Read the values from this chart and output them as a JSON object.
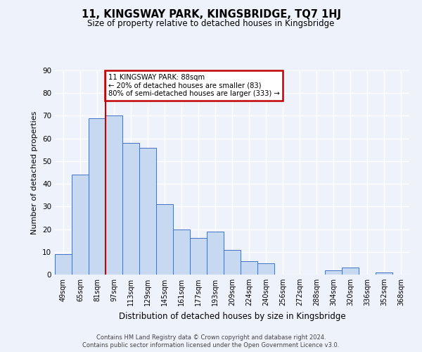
{
  "title": "11, KINGSWAY PARK, KINGSBRIDGE, TQ7 1HJ",
  "subtitle": "Size of property relative to detached houses in Kingsbridge",
  "xlabel": "Distribution of detached houses by size in Kingsbridge",
  "ylabel": "Number of detached properties",
  "bar_labels": [
    "49sqm",
    "65sqm",
    "81sqm",
    "97sqm",
    "113sqm",
    "129sqm",
    "145sqm",
    "161sqm",
    "177sqm",
    "193sqm",
    "209sqm",
    "224sqm",
    "240sqm",
    "256sqm",
    "272sqm",
    "288sqm",
    "304sqm",
    "320sqm",
    "336sqm",
    "352sqm",
    "368sqm"
  ],
  "bar_heights": [
    9,
    44,
    69,
    70,
    58,
    56,
    31,
    20,
    16,
    19,
    11,
    6,
    5,
    0,
    0,
    0,
    2,
    3,
    0,
    1,
    0
  ],
  "bar_color": "#c6d9f1",
  "bar_edge_color": "#4472c4",
  "red_line_x": 2.5,
  "annotation_text": "11 KINGSWAY PARK: 88sqm\n← 20% of detached houses are smaller (83)\n80% of semi-detached houses are larger (333) →",
  "annotation_box_color": "#ffffff",
  "annotation_box_edge_color": "#c00000",
  "ylim": [
    0,
    90
  ],
  "yticks": [
    0,
    10,
    20,
    30,
    40,
    50,
    60,
    70,
    80,
    90
  ],
  "footer1": "Contains HM Land Registry data © Crown copyright and database right 2024.",
  "footer2": "Contains public sector information licensed under the Open Government Licence v3.0.",
  "bg_color": "#eef2fb",
  "grid_color": "#ffffff"
}
